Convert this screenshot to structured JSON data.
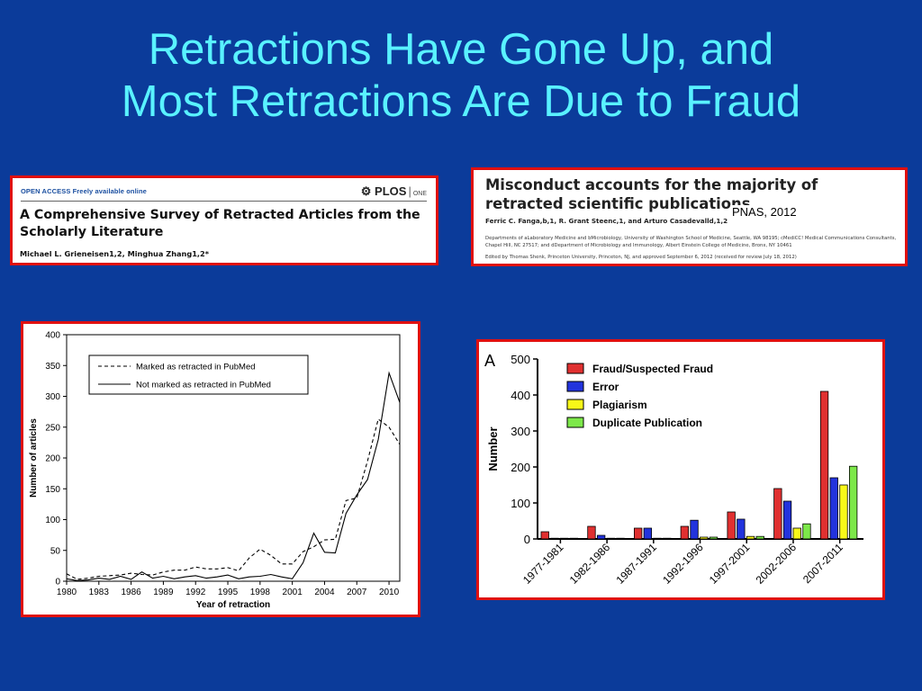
{
  "slide": {
    "title_line1": "Retractions Have Gone Up, and",
    "title_line2": "Most Retractions Are Due to Fraud",
    "title_color": "#59f2ff",
    "background_color": "#0b3b9a",
    "frame_color": "#e01010"
  },
  "plos_header": {
    "open_access_label": "OPEN ACCESS Freely available online",
    "journal_logo": "PLOS",
    "journal_logo_suffix": "ONE",
    "title": "A Comprehensive Survey of Retracted Articles from the Scholarly Literature",
    "authors": "Michael L. Grieneisen1,2, Minghua Zhang1,2*"
  },
  "pnas_header": {
    "title": "Misconduct accounts for the majority of retracted scientific publications",
    "authors": "Ferric C. Fanga,b,1, R. Grant Steenc,1, and Arturo Casadevalld,1,2",
    "source_tag": "PNAS, 2012",
    "affiliations": "Departments of aLaboratory Medicine and bMicrobiology, University of Washington School of Medicine, Seattle, WA 98195; cMediCC! Medical Communications Consultants, Chapel Hill, NC 27517; and dDepartment of Microbiology and Immunology, Albert Einstein College of Medicine, Bronx, NY 10461",
    "edited_by": "Edited by Thomas Shenk, Princeton University, Princeton, NJ, and approved September 6, 2012 (received for review July 18, 2012)"
  },
  "chart_data": [
    {
      "type": "line",
      "xlabel": "Year of retraction",
      "ylabel": "Number of articles",
      "xlim": [
        1980,
        2011
      ],
      "ylim": [
        0,
        400
      ],
      "x_ticks": [
        1980,
        1983,
        1986,
        1989,
        1992,
        1995,
        1998,
        2001,
        2004,
        2007,
        2010
      ],
      "y_ticks": [
        0,
        50,
        100,
        150,
        200,
        250,
        300,
        350,
        400
      ],
      "legend_position": "top-left",
      "x": [
        1980,
        1981,
        1982,
        1983,
        1984,
        1985,
        1986,
        1987,
        1988,
        1989,
        1990,
        1991,
        1992,
        1993,
        1994,
        1995,
        1996,
        1997,
        1998,
        1999,
        2000,
        2001,
        2002,
        2003,
        2004,
        2005,
        2006,
        2007,
        2008,
        2009,
        2010,
        2011
      ],
      "series": [
        {
          "name": "Marked as retracted in PubMed",
          "style": "dashed",
          "values": [
            12,
            3,
            5,
            8,
            9,
            10,
            13,
            11,
            10,
            15,
            18,
            18,
            23,
            20,
            20,
            22,
            17,
            38,
            52,
            42,
            28,
            28,
            48,
            56,
            67,
            68,
            131,
            135,
            195,
            263,
            250,
            222
          ]
        },
        {
          "name": "Not marked as retracted in PubMed",
          "style": "solid",
          "values": [
            4,
            1,
            2,
            5,
            3,
            8,
            3,
            15,
            5,
            8,
            4,
            7,
            9,
            5,
            7,
            10,
            4,
            7,
            8,
            11,
            7,
            4,
            30,
            78,
            47,
            46,
            110,
            140,
            165,
            230,
            338,
            290
          ]
        }
      ]
    },
    {
      "type": "bar",
      "panel_label": "A",
      "ylabel": "Number",
      "ylim": [
        0,
        500
      ],
      "y_ticks": [
        0,
        100,
        200,
        300,
        400,
        500
      ],
      "legend_position": "top-left",
      "categories": [
        "1977-1981",
        "1982-1986",
        "1987-1991",
        "1992-1996",
        "1997-2001",
        "2002-2006",
        "2007-2011"
      ],
      "series": [
        {
          "name": "Fraud/Suspected Fraud",
          "color": "#e03030",
          "values": [
            20,
            35,
            30,
            35,
            75,
            140,
            410
          ]
        },
        {
          "name": "Error",
          "color": "#2233dd",
          "values": [
            2,
            10,
            30,
            52,
            55,
            105,
            170
          ]
        },
        {
          "name": "Plagiarism",
          "color": "#f8f818",
          "values": [
            0,
            0,
            0,
            5,
            7,
            30,
            150
          ]
        },
        {
          "name": "Duplicate Publication",
          "color": "#7de84a",
          "values": [
            0,
            0,
            0,
            5,
            7,
            42,
            202
          ]
        }
      ]
    }
  ]
}
